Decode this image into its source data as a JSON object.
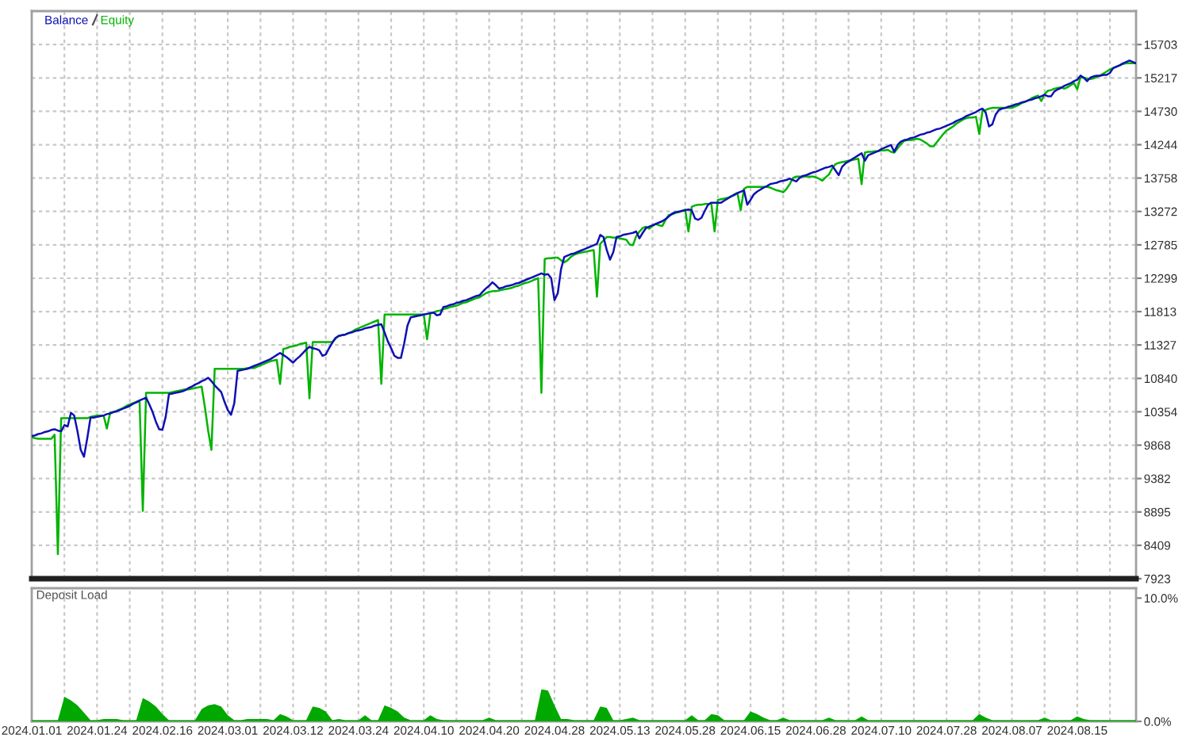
{
  "chart_data": [
    {
      "type": "line",
      "categories": [
        "2024.01.01",
        null,
        null,
        null,
        null,
        null,
        null,
        null,
        null,
        null,
        null,
        null,
        null,
        null,
        null,
        null,
        null,
        null,
        null,
        null,
        "2024.01.24",
        null,
        null,
        null,
        null,
        null,
        null,
        null,
        null,
        null,
        null,
        null,
        null,
        null,
        null,
        null,
        null,
        null,
        null,
        null,
        "2024.02.16",
        null,
        null,
        null,
        null,
        null,
        null,
        null,
        null,
        null,
        null,
        null,
        null,
        null,
        null,
        null,
        null,
        null,
        null,
        null,
        "2024.03.01",
        null,
        null,
        null,
        null,
        null,
        null,
        null,
        null,
        null,
        null,
        null,
        null,
        null,
        null,
        null,
        null,
        null,
        null,
        null,
        "2024.03.12",
        null,
        null,
        null,
        null,
        null,
        null,
        null,
        null,
        null,
        null,
        null,
        null,
        null,
        null,
        null,
        null,
        null,
        null,
        null,
        "2024.03.24",
        null,
        null,
        null,
        null,
        null,
        null,
        null,
        null,
        null,
        null,
        null,
        null,
        null,
        null,
        null,
        null,
        null,
        null,
        null,
        "2024.04.10",
        null,
        null,
        null,
        null,
        null,
        null,
        null,
        null,
        null,
        null,
        null,
        null,
        null,
        null,
        null,
        null,
        null,
        null,
        null,
        "2024.04.20",
        null,
        null,
        null,
        null,
        null,
        null,
        null,
        null,
        null,
        null,
        null,
        null,
        null,
        null,
        null,
        null,
        null,
        null,
        null,
        "2024.04.28",
        null,
        null,
        null,
        null,
        null,
        null,
        null,
        null,
        null,
        null,
        null,
        null,
        null,
        null,
        null,
        null,
        null,
        null,
        null,
        "2024.05.13",
        null,
        null,
        null,
        null,
        null,
        null,
        null,
        null,
        null,
        null,
        null,
        null,
        null,
        null,
        null,
        null,
        null,
        null,
        null,
        "2024.05.28",
        null,
        null,
        null,
        null,
        null,
        null,
        null,
        null,
        null,
        null,
        null,
        null,
        null,
        null,
        null,
        null,
        null,
        null,
        null,
        "2024.06.15",
        null,
        null,
        null,
        null,
        null,
        null,
        null,
        null,
        null,
        null,
        null,
        null,
        null,
        null,
        null,
        null,
        null,
        null,
        null,
        "2024.06.28",
        null,
        null,
        null,
        null,
        null,
        null,
        null,
        null,
        null,
        null,
        null,
        null,
        null,
        null,
        null,
        null,
        null,
        null,
        null,
        "2024.07.10",
        null,
        null,
        null,
        null,
        null,
        null,
        null,
        null,
        null,
        null,
        null,
        null,
        null,
        null,
        null,
        null,
        null,
        null,
        null,
        "2024.07.28",
        null,
        null,
        null,
        null,
        null,
        null,
        null,
        null,
        null,
        null,
        null,
        null,
        null,
        null,
        null,
        null,
        null,
        null,
        null,
        "2024.08.07",
        null,
        null,
        null,
        null,
        null,
        null,
        null,
        null,
        null,
        null,
        null,
        null,
        null,
        null,
        null,
        null,
        null,
        null,
        null,
        "2024.08.15",
        null,
        null,
        null,
        null,
        null,
        null,
        null,
        null,
        null,
        null,
        null,
        null,
        null,
        null,
        null,
        null,
        null,
        null
      ],
      "series": [
        {
          "name": "Balance",
          "color": "#1010b4",
          "values": [
            10000,
            10010,
            10030,
            10040,
            10060,
            10070,
            10090,
            10100,
            10080,
            10070,
            10160,
            10140,
            10340,
            10300,
            10070,
            9800,
            9700,
            9970,
            10270,
            10270,
            10280,
            10290,
            10300,
            10320,
            10330,
            10350,
            10360,
            10380,
            10400,
            10420,
            10440,
            10470,
            10490,
            10520,
            10540,
            10560,
            10460,
            10350,
            10210,
            10100,
            10090,
            10280,
            10610,
            10620,
            10630,
            10640,
            10650,
            10670,
            10700,
            10720,
            10750,
            10770,
            10800,
            10820,
            10850,
            10800,
            10740,
            10690,
            10640,
            10500,
            10380,
            10310,
            10480,
            10950,
            10960,
            10970,
            10980,
            11000,
            11020,
            11040,
            11060,
            11080,
            11100,
            11120,
            11150,
            11180,
            11210,
            11180,
            11150,
            11110,
            11070,
            11120,
            11160,
            11210,
            11260,
            11300,
            11280,
            11270,
            11250,
            11170,
            11190,
            11280,
            11360,
            11430,
            11460,
            11470,
            11480,
            11500,
            11510,
            11530,
            11540,
            11550,
            11570,
            11580,
            11590,
            11610,
            11620,
            11630,
            11510,
            11380,
            11280,
            11170,
            11140,
            11140,
            11350,
            11610,
            11730,
            11740,
            11750,
            11760,
            11770,
            11780,
            11790,
            11800,
            11760,
            11770,
            11880,
            11890,
            11910,
            11920,
            11940,
            11950,
            11970,
            11980,
            12000,
            12020,
            12040,
            12050,
            12100,
            12150,
            12190,
            12240,
            12200,
            12150,
            12160,
            12180,
            12190,
            12200,
            12220,
            12230,
            12250,
            12270,
            12290,
            12310,
            12330,
            12350,
            12370,
            12350,
            12360,
            12300,
            11980,
            12080,
            12430,
            12610,
            12630,
            12650,
            12660,
            12680,
            12700,
            12720,
            12740,
            12760,
            12780,
            12800,
            12930,
            12900,
            12710,
            12570,
            12680,
            12900,
            12910,
            12930,
            12940,
            12950,
            12960,
            12980,
            12880,
            12960,
            13030,
            13050,
            13070,
            13090,
            13110,
            13130,
            13160,
            13200,
            13240,
            13260,
            13270,
            13280,
            13290,
            13300,
            13290,
            13170,
            13150,
            13180,
            13280,
            13370,
            13400,
            13400,
            13400,
            13400,
            13430,
            13460,
            13490,
            13510,
            13540,
            13560,
            13580,
            13370,
            13440,
            13520,
            13560,
            13590,
            13620,
            13640,
            13670,
            13680,
            13690,
            13710,
            13720,
            13730,
            13750,
            13730,
            13710,
            13760,
            13790,
            13800,
            13820,
            13840,
            13850,
            13870,
            13890,
            13910,
            13920,
            13940,
            13870,
            13800,
            13920,
            13970,
            14000,
            14030,
            14060,
            14090,
            14120,
            14010,
            14090,
            14110,
            14130,
            14150,
            14180,
            14200,
            14220,
            14240,
            14140,
            14240,
            14290,
            14310,
            14320,
            14340,
            14350,
            14370,
            14390,
            14400,
            14420,
            14430,
            14450,
            14470,
            14480,
            14500,
            14520,
            14540,
            14560,
            14590,
            14610,
            14630,
            14660,
            14680,
            14700,
            14720,
            14750,
            14770,
            14710,
            14510,
            14540,
            14680,
            14750,
            14770,
            14780,
            14800,
            14810,
            14830,
            14840,
            14860,
            14870,
            14890,
            14900,
            14920,
            14930,
            14950,
            14970,
            14950,
            14950,
            15020,
            15050,
            15070,
            15100,
            15120,
            15140,
            15170,
            15190,
            15250,
            15220,
            15170,
            15220,
            15240,
            15250,
            15250,
            15260,
            15260,
            15290,
            15360,
            15380,
            15400,
            15430,
            15450,
            15470,
            15450,
            15430
          ]
        },
        {
          "name": "Equity",
          "color": "#00b400",
          "values": [
            9980,
            9970,
            9960,
            9960,
            9960,
            9960,
            9960,
            10020,
            8280,
            10260,
            10260,
            10260,
            10260,
            10260,
            10260,
            10260,
            10260,
            10260,
            10280,
            10290,
            10300,
            10300,
            10300,
            10110,
            10340,
            10350,
            10370,
            10390,
            10410,
            10440,
            10460,
            10480,
            10500,
            10510,
            8910,
            10630,
            10630,
            10630,
            10630,
            10630,
            10630,
            10630,
            10630,
            10640,
            10650,
            10660,
            10670,
            10680,
            10680,
            10690,
            10700,
            10710,
            10720,
            10420,
            10080,
            9800,
            10980,
            10980,
            10980,
            10980,
            10980,
            10980,
            10980,
            10980,
            10980,
            10980,
            10990,
            10990,
            10990,
            11010,
            11030,
            11050,
            11070,
            11090,
            11100,
            11110,
            10760,
            11270,
            11280,
            11300,
            11310,
            11320,
            11340,
            11350,
            11360,
            10550,
            11370,
            11370,
            11370,
            11370,
            11370,
            11370,
            11370,
            11420,
            11460,
            11470,
            11480,
            11500,
            11520,
            11550,
            11570,
            11590,
            11610,
            11630,
            11650,
            11670,
            11690,
            10760,
            11770,
            11770,
            11770,
            11770,
            11770,
            11770,
            11770,
            11770,
            11770,
            11770,
            11770,
            11770,
            11770,
            11410,
            11790,
            11800,
            11820,
            11830,
            11850,
            11860,
            11880,
            11890,
            11900,
            11920,
            11940,
            11950,
            11970,
            11990,
            12010,
            12020,
            12050,
            12080,
            12100,
            12110,
            12110,
            12120,
            12130,
            12140,
            12150,
            12160,
            12180,
            12190,
            12210,
            12230,
            12240,
            12260,
            12280,
            12300,
            10630,
            12580,
            12590,
            12590,
            12600,
            12600,
            12560,
            12530,
            12560,
            12610,
            12640,
            12660,
            12670,
            12680,
            12690,
            12700,
            12710,
            12030,
            12800,
            12850,
            12900,
            12900,
            12890,
            12890,
            12880,
            12870,
            12860,
            12790,
            12780,
            12910,
            12980,
            13030,
            13050,
            13020,
            13060,
            13090,
            13070,
            13060,
            13150,
            13220,
            13230,
            13250,
            13260,
            13280,
            13300,
            12980,
            13340,
            13360,
            13370,
            13370,
            13380,
            13380,
            13390,
            12980,
            13440,
            13450,
            13460,
            13470,
            13490,
            13520,
            13540,
            13290,
            13600,
            13630,
            13630,
            13630,
            13630,
            13630,
            13630,
            13630,
            13620,
            13600,
            13580,
            13570,
            13550,
            13600,
            13670,
            13760,
            13780,
            13780,
            13780,
            13780,
            13780,
            13780,
            13770,
            13750,
            13720,
            13770,
            13810,
            13900,
            13960,
            13980,
            13990,
            14000,
            14010,
            14020,
            14030,
            14040,
            13670,
            14130,
            14140,
            14140,
            14150,
            14150,
            14160,
            14160,
            14170,
            14140,
            14130,
            14190,
            14250,
            14300,
            14310,
            14310,
            14320,
            14330,
            14320,
            14290,
            14260,
            14220,
            14220,
            14280,
            14340,
            14400,
            14450,
            14480,
            14510,
            14550,
            14580,
            14610,
            14630,
            14640,
            14640,
            14650,
            14400,
            14740,
            14750,
            14770,
            14780,
            14780,
            14780,
            14780,
            14780,
            14780,
            14780,
            14800,
            14820,
            14850,
            14870,
            14890,
            14920,
            14940,
            14960,
            14880,
            14980,
            15030,
            15040,
            15060,
            15070,
            15080,
            15060,
            15080,
            15110,
            15140,
            15050,
            15230,
            15220,
            15210,
            15200,
            15210,
            15230,
            15250,
            15280,
            15310,
            15340,
            15360,
            15380,
            15400,
            15420,
            15430,
            15430,
            15430,
            15430
          ]
        }
      ],
      "ylim": [
        7923,
        16190
      ],
      "yticks": [
        7923,
        8409,
        8895,
        9382,
        9868,
        10354,
        10840,
        11327,
        11813,
        12299,
        12785,
        13272,
        13758,
        14244,
        14730,
        15217,
        15703
      ],
      "grid": true,
      "legend": "top left",
      "tick_labels": "y"
    },
    {
      "type": "area",
      "title": "Deposit Load",
      "color": "#00a800",
      "categories": [
        "2024.01.01",
        null,
        null,
        null,
        null,
        null,
        null,
        null,
        null,
        null,
        "2024.01.24",
        null,
        null,
        null,
        null,
        null,
        null,
        null,
        null,
        null,
        "2024.02.16",
        null,
        null,
        null,
        null,
        null,
        null,
        null,
        null,
        null,
        "2024.03.01",
        null,
        null,
        null,
        null,
        null,
        null,
        null,
        null,
        null,
        "2024.03.12",
        null,
        null,
        null,
        null,
        null,
        null,
        null,
        null,
        null,
        "2024.03.24",
        null,
        null,
        null,
        null,
        null,
        null,
        null,
        null,
        null,
        "2024.04.10",
        null,
        null,
        null,
        null,
        null,
        null,
        null,
        null,
        null,
        "2024.04.20",
        null,
        null,
        null,
        null,
        null,
        null,
        null,
        null,
        null,
        "2024.04.28",
        null,
        null,
        null,
        null,
        null,
        null,
        null,
        null,
        null,
        "2024.05.13",
        null,
        null,
        null,
        null,
        null,
        null,
        null,
        null,
        null,
        "2024.05.28",
        null,
        null,
        null,
        null,
        null,
        null,
        null,
        null,
        null,
        "2024.06.15",
        null,
        null,
        null,
        null,
        null,
        null,
        null,
        null,
        null,
        "2024.06.28",
        null,
        null,
        null,
        null,
        null,
        null,
        null,
        null,
        null,
        "2024.07.10",
        null,
        null,
        null,
        null,
        null,
        null,
        null,
        null,
        null,
        "2024.07.28",
        null,
        null,
        null,
        null,
        null,
        null,
        null,
        null,
        null,
        "2024.08.07",
        null,
        null,
        null,
        null,
        null,
        null,
        null,
        null,
        null,
        "2024.08.15",
        null,
        null,
        null,
        null,
        null,
        null,
        null,
        null,
        null
      ],
      "values": [
        0.1,
        0.1,
        0.1,
        0.1,
        0.1,
        2.0,
        1.7,
        1.3,
        0.7,
        0.1,
        0.1,
        0.2,
        0.2,
        0.2,
        0.1,
        0.1,
        0.1,
        1.9,
        1.6,
        1.2,
        0.6,
        0.1,
        0.1,
        0.1,
        0.1,
        0.1,
        1.0,
        1.3,
        1.4,
        1.2,
        0.5,
        0.1,
        0.1,
        0.2,
        0.2,
        0.2,
        0.2,
        0.1,
        0.6,
        0.4,
        0.1,
        0.1,
        0.1,
        1.2,
        1.1,
        0.8,
        0.1,
        0.2,
        0.1,
        0.1,
        0.1,
        0.5,
        0.1,
        0.1,
        1.3,
        1.1,
        0.8,
        0.3,
        0.1,
        0.1,
        0.1,
        0.5,
        0.2,
        0.1,
        0.1,
        0.1,
        0.1,
        0.1,
        0.1,
        0.1,
        0.3,
        0.1,
        0.1,
        0.1,
        0.1,
        0.1,
        0.1,
        0.1,
        2.6,
        2.5,
        1.3,
        0.2,
        0.2,
        0.1,
        0.1,
        0.1,
        0.1,
        1.2,
        1.1,
        0.1,
        0.1,
        0.2,
        0.3,
        0.1,
        0.1,
        0.1,
        0.1,
        0.1,
        0.1,
        0.1,
        0.1,
        0.5,
        0.1,
        0.1,
        0.6,
        0.5,
        0.1,
        0.1,
        0.1,
        0.1,
        0.8,
        0.6,
        0.3,
        0.1,
        0.1,
        0.3,
        0.1,
        0.1,
        0.1,
        0.1,
        0.1,
        0.1,
        0.3,
        0.1,
        0.1,
        0.1,
        0.1,
        0.4,
        0.1,
        0.1,
        0.1,
        0.1,
        0.1,
        0.1,
        0.1,
        0.1,
        0.1,
        0.1,
        0.1,
        0.1,
        0.1,
        0.1,
        0.1,
        0.1,
        0.1,
        0.6,
        0.3,
        0.1,
        0.1,
        0.1,
        0.1,
        0.1,
        0.1,
        0.1,
        0.1,
        0.3,
        0.1,
        0.1,
        0.1,
        0.1,
        0.4,
        0.2,
        0.1,
        0.1,
        0.1,
        0.1,
        0.1,
        0.1,
        0.1,
        0.1
      ],
      "ylim": [
        0,
        10.8
      ],
      "yticks": [
        {
          "value": 0,
          "label": "0.0%"
        },
        {
          "value": 10,
          "label": "10.0%"
        }
      ],
      "grid": "x"
    }
  ]
}
